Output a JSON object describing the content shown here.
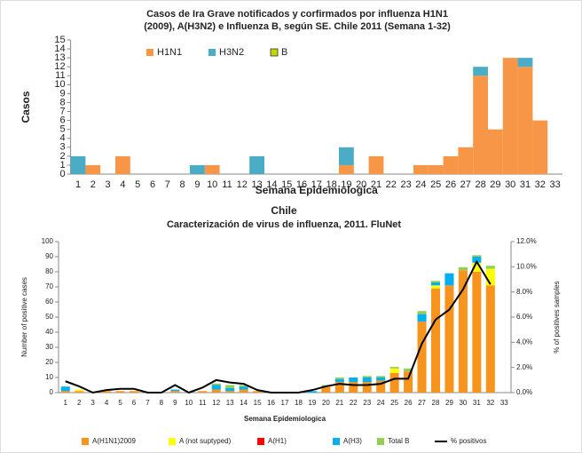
{
  "chart_data": [
    {
      "type": "bar",
      "stacked": true,
      "title": [
        "Casos de Ira Grave notificados y corfirmados por influenza H1N1",
        "(2009), A(H3N2) e Influenza B, según SE. Chile 2011 (Semana 1-32)"
      ],
      "y_label": "Casos",
      "x_label": "Semana Epidemiologica",
      "legend": "top",
      "categories": [
        1,
        2,
        3,
        4,
        5,
        6,
        7,
        8,
        9,
        10,
        11,
        12,
        13,
        14,
        15,
        16,
        17,
        18,
        19,
        20,
        21,
        22,
        23,
        24,
        25,
        26,
        27,
        28,
        29,
        30,
        31,
        32,
        33
      ],
      "series": [
        {
          "name": "H1N1",
          "color": "#f79646",
          "values": [
            0,
            1,
            0,
            2,
            0,
            0,
            0,
            0,
            0,
            1,
            0,
            0,
            0,
            0,
            0,
            0,
            0,
            0,
            1,
            0,
            2,
            0,
            0,
            1,
            1,
            2,
            3,
            11,
            5,
            13,
            12,
            6,
            0
          ]
        },
        {
          "name": "H3N2",
          "color": "#4bacc6",
          "values": [
            2,
            0,
            0,
            0,
            0,
            0,
            0,
            0,
            1,
            0,
            0,
            0,
            2,
            0,
            0,
            0,
            0,
            0,
            2,
            0,
            0,
            0,
            0,
            0,
            0,
            0,
            0,
            1,
            0,
            0,
            1,
            0,
            0
          ]
        },
        {
          "name": "B",
          "color": "#c4d600",
          "values": [
            0,
            0,
            0,
            0,
            0,
            0,
            0,
            0,
            0,
            0,
            0,
            0,
            0,
            0,
            0,
            0,
            0,
            0,
            0,
            0,
            0,
            0,
            0,
            0,
            0,
            0,
            0,
            0,
            0,
            0,
            0,
            0,
            0
          ]
        }
      ],
      "ylim": [
        0,
        15
      ],
      "yticks": [
        0,
        1,
        2,
        3,
        4,
        5,
        6,
        7,
        8,
        9,
        10,
        11,
        12,
        13,
        14,
        15
      ],
      "grid": false
    },
    {
      "type": "bar",
      "stacked": true,
      "title": "Chile",
      "subtitle": "Caracterización de virus de influenza, 2011. FluNet",
      "y_label": "Number of positive cases",
      "y2_label": "% of positives samples",
      "x_label": "Semana Epidemiologica",
      "legend": "bottom",
      "categories": [
        1,
        2,
        3,
        4,
        5,
        6,
        7,
        8,
        9,
        10,
        11,
        12,
        13,
        14,
        15,
        16,
        17,
        18,
        19,
        20,
        21,
        22,
        23,
        24,
        25,
        26,
        27,
        28,
        29,
        30,
        31,
        32,
        33
      ],
      "series": [
        {
          "name": "A(H1N1)2009",
          "color": "#f7941d",
          "values": [
            1,
            1,
            0,
            1,
            1,
            1,
            0,
            0,
            1,
            0,
            1,
            2,
            1,
            2,
            1,
            0,
            0,
            0,
            0,
            4,
            7,
            7,
            7,
            8,
            13,
            14,
            47,
            69,
            71,
            81,
            80,
            71,
            0
          ]
        },
        {
          "name": "A (not suptyped)",
          "color": "#ffff00",
          "values": [
            0,
            1,
            0,
            0,
            0,
            0,
            0,
            0,
            0,
            0,
            0,
            0,
            0,
            0,
            0,
            0,
            0,
            0,
            0,
            0,
            0,
            0,
            0,
            0,
            3,
            0,
            0,
            2,
            0,
            0,
            6,
            11,
            0
          ]
        },
        {
          "name": "A(H1)",
          "color": "#ff0000",
          "values": [
            0,
            0,
            0,
            0,
            0,
            0,
            0,
            0,
            0,
            0,
            0,
            0,
            0,
            0,
            0,
            0,
            0,
            0,
            0,
            0,
            0,
            0,
            0,
            0,
            0,
            0,
            0,
            0,
            0,
            0,
            0,
            0,
            0
          ]
        },
        {
          "name": "A(H3)",
          "color": "#00b0f0",
          "values": [
            3,
            0,
            0,
            0,
            0,
            0,
            0,
            0,
            1,
            0,
            0,
            3,
            2,
            2,
            0,
            0,
            0,
            0,
            1,
            0,
            2,
            3,
            3,
            2,
            0,
            0,
            5,
            2,
            8,
            0,
            4,
            0,
            0
          ]
        },
        {
          "name": "Total B",
          "color": "#92d050",
          "values": [
            0,
            0,
            0,
            0,
            0,
            0,
            0,
            0,
            0,
            0,
            0,
            1,
            2,
            1,
            0,
            0,
            0,
            0,
            0,
            1,
            1,
            0,
            1,
            1,
            1,
            2,
            2,
            1,
            0,
            2,
            1,
            2,
            0
          ]
        },
        {
          "name": "% positivos",
          "type": "line",
          "axis": "y2",
          "color": "#000000",
          "values": [
            0.9,
            0.5,
            0.0,
            0.2,
            0.3,
            0.3,
            0.0,
            0.0,
            0.6,
            0.0,
            0.4,
            1.0,
            0.8,
            0.7,
            0.2,
            0.0,
            0.0,
            0.0,
            0.2,
            0.5,
            0.7,
            0.6,
            0.6,
            0.7,
            1.1,
            1.1,
            3.9,
            5.8,
            6.6,
            8.2,
            10.4,
            8.6,
            null
          ]
        }
      ],
      "ylim": [
        0,
        100
      ],
      "yticks": [
        0,
        10,
        20,
        30,
        40,
        50,
        60,
        70,
        80,
        90,
        100
      ],
      "y2lim": [
        0,
        12
      ],
      "y2ticks": [
        {
          "value": 0,
          "label": "0.0%"
        },
        {
          "value": 2,
          "label": "2.0%"
        },
        {
          "value": 4,
          "label": "4.0%"
        },
        {
          "value": 6,
          "label": "6.0%"
        },
        {
          "value": 8,
          "label": "8.0%"
        },
        {
          "value": 10,
          "label": "10.0%"
        },
        {
          "value": 12,
          "label": "12.0%"
        }
      ],
      "grid": false
    }
  ]
}
